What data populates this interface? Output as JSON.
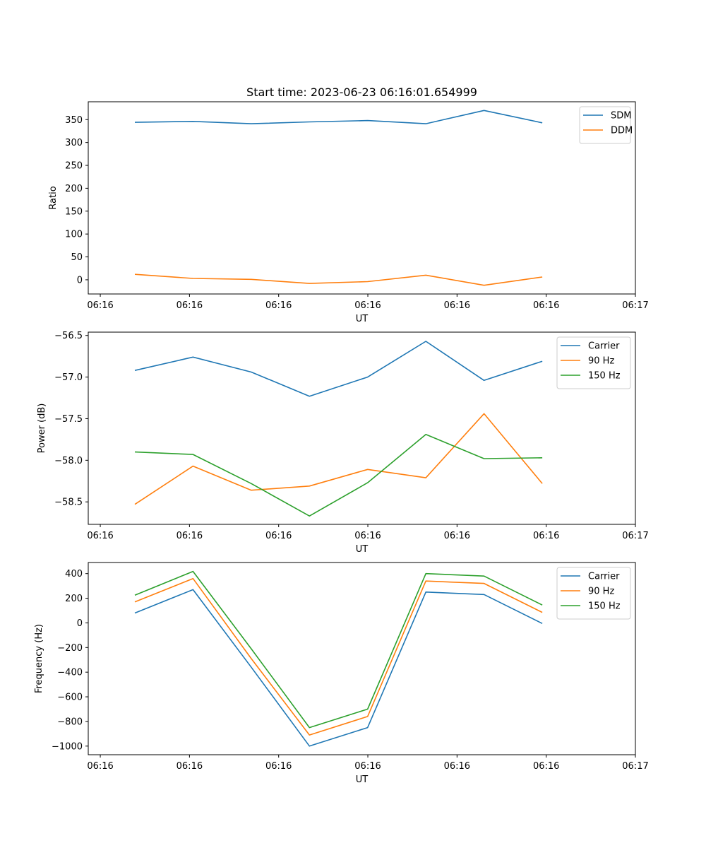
{
  "figure": {
    "title": "Start time: 2023-06-23 06:16:01.654999"
  },
  "chart_data": [
    {
      "type": "line",
      "title": "Start time: 2023-06-23 06:16:01.654999",
      "xlabel": "UT",
      "ylabel": "Ratio",
      "x_tick_labels": [
        "06:16",
        "06:16",
        "06:16",
        "06:16",
        "06:16",
        "06:16",
        "06:17"
      ],
      "y_ticks": [
        0,
        50,
        100,
        150,
        200,
        250,
        300,
        350
      ],
      "ylim": [
        -31,
        389
      ],
      "x": [
        1,
        2,
        3,
        4,
        5,
        6,
        7,
        8
      ],
      "xlim": [
        0.2,
        9.6
      ],
      "legend_position": "upper right",
      "grid": false,
      "series": [
        {
          "name": "SDM",
          "color": "#1f77b4",
          "values": [
            344,
            346,
            341,
            345,
            348,
            341,
            370,
            343
          ]
        },
        {
          "name": "DDM",
          "color": "#ff7f0e",
          "values": [
            12,
            3,
            1,
            -8,
            -4,
            10,
            -12,
            6
          ]
        }
      ]
    },
    {
      "type": "line",
      "title": "",
      "xlabel": "UT",
      "ylabel": "Power (dB)",
      "x_tick_labels": [
        "06:16",
        "06:16",
        "06:16",
        "06:16",
        "06:16",
        "06:16",
        "06:17"
      ],
      "y_ticks": [
        -58.5,
        -58.0,
        -57.5,
        -57.0,
        -56.5
      ],
      "y_tick_labels": [
        "−58.5",
        "−58.0",
        "−57.5",
        "−57.0",
        "−56.5"
      ],
      "ylim": [
        -58.77,
        -56.46
      ],
      "x": [
        1,
        2,
        3,
        4,
        5,
        6,
        7,
        8
      ],
      "xlim": [
        0.2,
        9.6
      ],
      "legend_position": "upper right",
      "grid": false,
      "series": [
        {
          "name": "Carrier",
          "color": "#1f77b4",
          "values": [
            -56.92,
            -56.76,
            -56.94,
            -57.23,
            -57.0,
            -56.57,
            -57.04,
            -56.81
          ]
        },
        {
          "name": "90 Hz",
          "color": "#ff7f0e",
          "values": [
            -58.53,
            -58.07,
            -58.36,
            -58.31,
            -58.11,
            -58.21,
            -57.44,
            -58.28
          ]
        },
        {
          "name": "150 Hz",
          "color": "#2ca02c",
          "values": [
            -57.9,
            -57.93,
            -58.28,
            -58.67,
            -58.27,
            -57.69,
            -57.98,
            -57.97
          ]
        }
      ]
    },
    {
      "type": "line",
      "title": "",
      "xlabel": "UT",
      "ylabel": "Frequency (Hz)",
      "x_tick_labels": [
        "06:16",
        "06:16",
        "06:16",
        "06:16",
        "06:16",
        "06:16",
        "06:17"
      ],
      "y_ticks": [
        -1000,
        -800,
        -600,
        -400,
        -200,
        0,
        200,
        400
      ],
      "y_tick_labels": [
        "−1000",
        "−800",
        "−600",
        "−400",
        "−200",
        "0",
        "200",
        "400"
      ],
      "ylim": [
        -1070,
        490
      ],
      "x": [
        1,
        2,
        3,
        4,
        5,
        6,
        7,
        8
      ],
      "xlim": [
        0.2,
        9.6
      ],
      "legend_position": "upper right",
      "grid": false,
      "series": [
        {
          "name": "Carrier",
          "color": "#1f77b4",
          "values": [
            80,
            270,
            -360,
            -1000,
            -850,
            250,
            230,
            -5
          ]
        },
        {
          "name": "90 Hz",
          "color": "#ff7f0e",
          "values": [
            170,
            360,
            -290,
            -910,
            -760,
            340,
            320,
            85
          ]
        },
        {
          "name": "150 Hz",
          "color": "#2ca02c",
          "values": [
            225,
            418,
            -210,
            -850,
            -700,
            400,
            380,
            145
          ]
        }
      ]
    }
  ]
}
